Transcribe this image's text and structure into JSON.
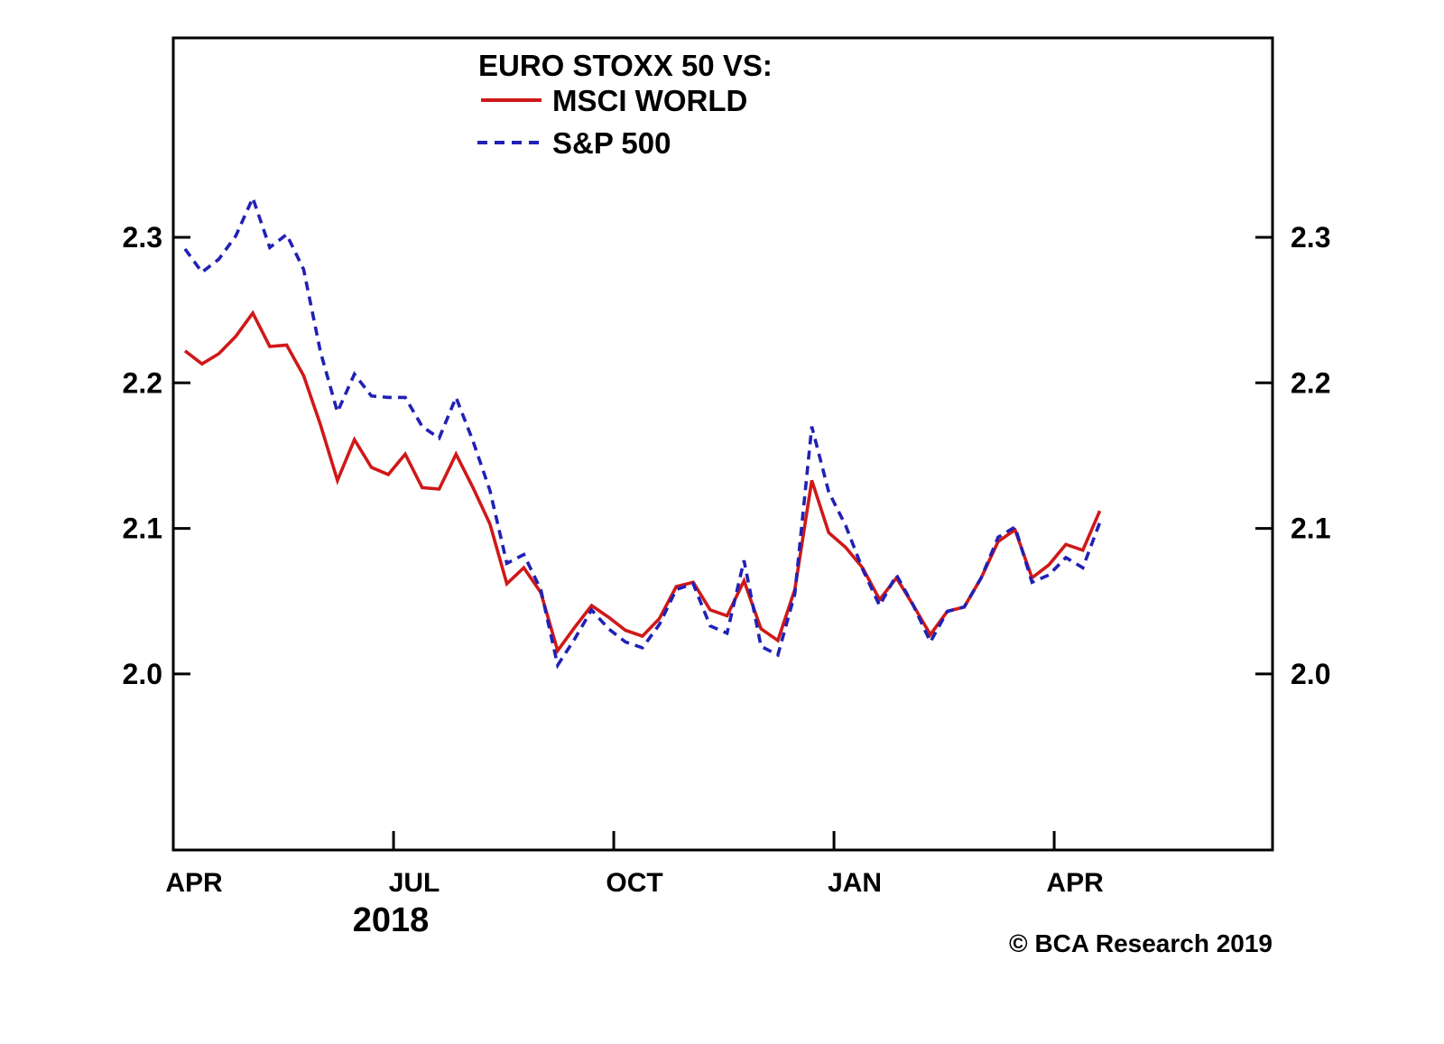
{
  "page": {
    "background_color": "#ffffff",
    "axis_color": "#000000"
  },
  "legend": {
    "title": "EURO STOXX 50 VS:",
    "items": [
      {
        "label": "MSCI WORLD",
        "color": "#d01818",
        "style": "solid"
      },
      {
        "label": "S&P 500",
        "color": "#2121b5",
        "style": "dashed"
      }
    ]
  },
  "x_axis": {
    "year_label": "2018"
  },
  "footer": {
    "copyright": "© BCA Research 2019"
  },
  "chart_data": {
    "type": "line",
    "title": "EURO STOXX 50 VS:",
    "x_unit": "weekly observations, April 2018 through late April 2019",
    "grid": false,
    "legend_position": "top-center-inside",
    "ylim": [
      1.944,
      2.437
    ],
    "y_ticks": [
      2.3,
      2.2,
      2.1,
      2.0
    ],
    "y_tick_labels": [
      "2.3",
      "2.2",
      "2.1",
      "2.0"
    ],
    "y_axis_sides": "both",
    "x_ticks": [
      {
        "label": "APR",
        "week": -0.69,
        "has_tick": false
      },
      {
        "label": "JUL",
        "week": 12.31,
        "has_tick": true
      },
      {
        "label": "OCT",
        "week": 25.31,
        "has_tick": true
      },
      {
        "label": "JAN",
        "week": 38.31,
        "has_tick": true
      },
      {
        "label": "APR",
        "week": 51.31,
        "has_tick": true
      }
    ],
    "series": [
      {
        "name": "MSCI WORLD",
        "color": "#d01818",
        "style": "solid",
        "values": [
          2.222,
          2.213,
          2.22,
          2.232,
          2.248,
          2.225,
          2.226,
          2.205,
          2.171,
          2.133,
          2.161,
          2.142,
          2.137,
          2.151,
          2.128,
          2.127,
          2.151,
          2.128,
          2.103,
          2.062,
          2.073,
          2.056,
          2.016,
          2.032,
          2.047,
          2.039,
          2.03,
          2.026,
          2.038,
          2.06,
          2.063,
          2.044,
          2.04,
          2.064,
          2.031,
          2.023,
          2.058,
          2.133,
          2.097,
          2.087,
          2.073,
          2.051,
          2.066,
          2.047,
          2.027,
          2.043,
          2.046,
          2.066,
          2.091,
          2.099,
          2.066,
          2.075,
          2.089,
          2.085,
          2.112
        ]
      },
      {
        "name": "S&P 500",
        "color": "#2121b5",
        "style": "dashed",
        "values": [
          2.292,
          2.276,
          2.285,
          2.301,
          2.327,
          2.293,
          2.302,
          2.278,
          2.221,
          2.18,
          2.206,
          2.191,
          2.19,
          2.19,
          2.17,
          2.162,
          2.19,
          2.16,
          2.126,
          2.076,
          2.082,
          2.058,
          2.006,
          2.024,
          2.044,
          2.031,
          2.022,
          2.018,
          2.034,
          2.058,
          2.062,
          2.033,
          2.028,
          2.078,
          2.019,
          2.013,
          2.055,
          2.17,
          2.125,
          2.102,
          2.072,
          2.047,
          2.068,
          2.047,
          2.022,
          2.043,
          2.046,
          2.066,
          2.094,
          2.101,
          2.063,
          2.068,
          2.08,
          2.073,
          2.104
        ]
      }
    ]
  }
}
